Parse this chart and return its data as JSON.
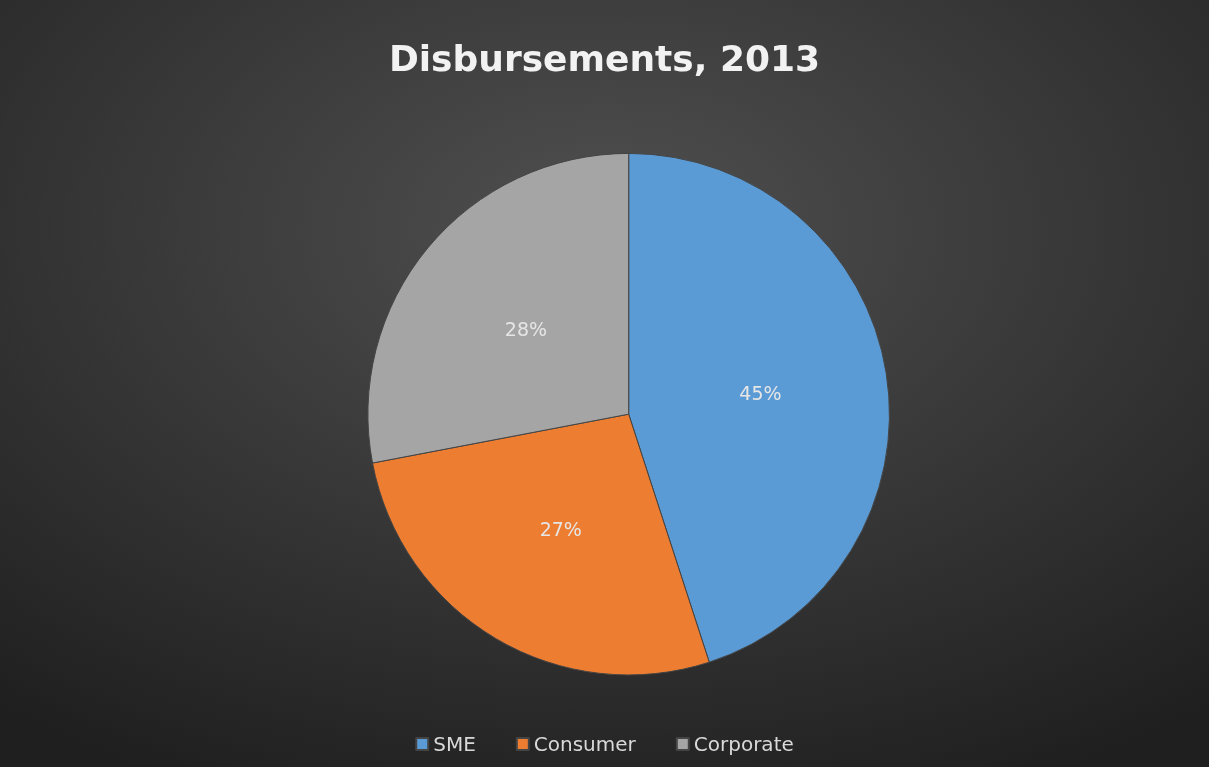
{
  "chart_data": {
    "type": "pie",
    "title": "Disbursements, 2013",
    "categories": [
      "SME",
      "Consumer",
      "Corporate"
    ],
    "values": [
      45,
      27,
      28
    ],
    "colors": [
      "#5b9bd5",
      "#ed7d31",
      "#a5a5a5"
    ],
    "value_labels": [
      "45%",
      "27%",
      "28%"
    ],
    "legend": "bottom"
  }
}
